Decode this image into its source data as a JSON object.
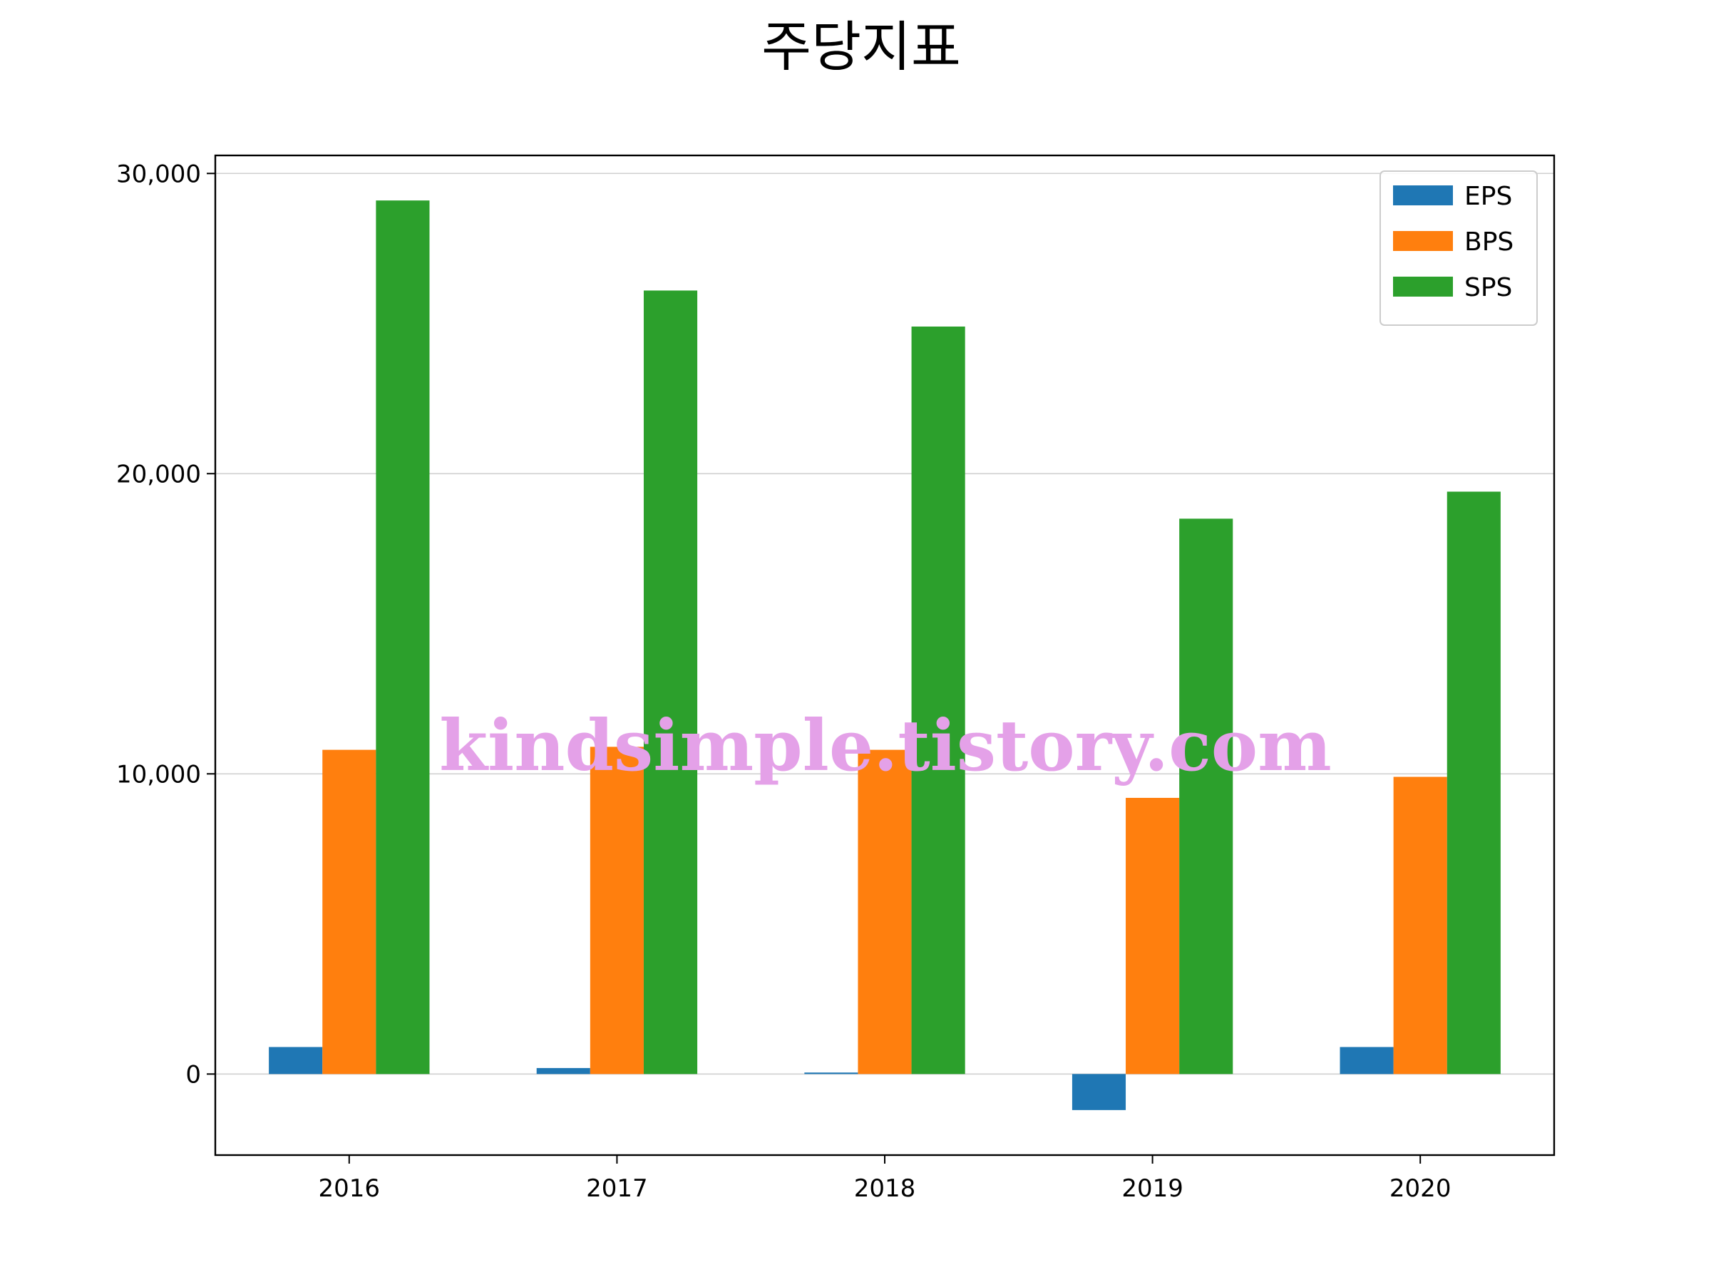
{
  "chart_data": {
    "type": "bar",
    "title": "주당지표",
    "xlabel": "",
    "ylabel": "",
    "categories": [
      "2016",
      "2017",
      "2018",
      "2019",
      "2020"
    ],
    "series": [
      {
        "name": "EPS",
        "color": "#1f77b4",
        "values": [
          900,
          200,
          50,
          -1200,
          900
        ]
      },
      {
        "name": "BPS",
        "color": "#ff7f0e",
        "values": [
          10800,
          10900,
          10800,
          9200,
          9900
        ]
      },
      {
        "name": "SPS",
        "color": "#2ca02c",
        "values": [
          29100,
          26100,
          24900,
          18500,
          19400
        ]
      }
    ],
    "ylim": [
      -2700,
      30600
    ],
    "yticks": [
      0,
      10000,
      20000,
      30000
    ],
    "ytick_labels": [
      "0",
      "10,000",
      "20,000",
      "30,000"
    ],
    "grid": "horizontal",
    "legend_position": "top-right"
  },
  "watermark": "kindsimple.tistory.com"
}
